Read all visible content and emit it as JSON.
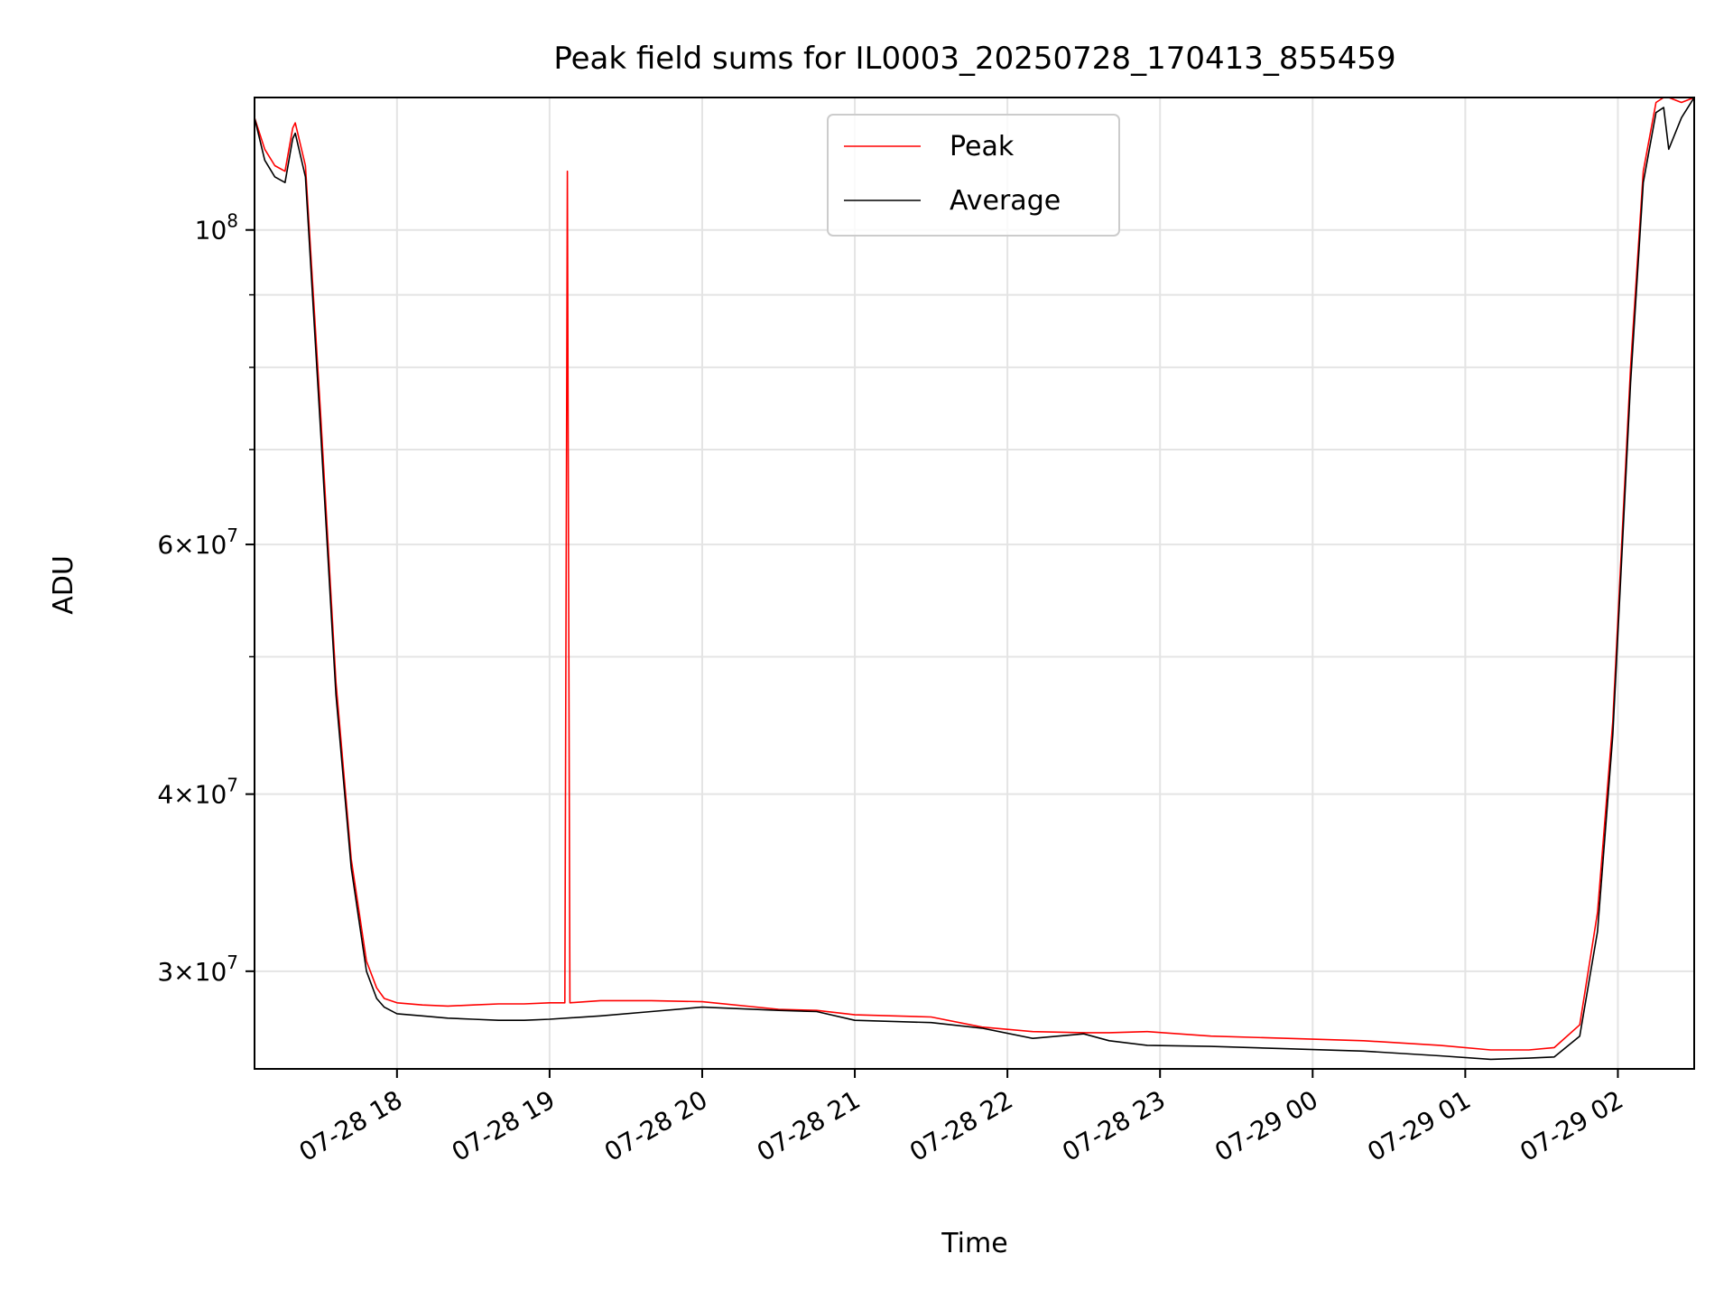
{
  "chart_data": {
    "type": "line",
    "title": "Peak field sums for IL0003_20250728_170413_855459",
    "xlabel": "Time",
    "ylabel": "ADU",
    "y_scale": "log",
    "ylim": [
      25600000,
      124000000
    ],
    "xlim": [
      "2025-07-28 17:04",
      "2025-07-29 02:30"
    ],
    "grid": true,
    "legend_position": "top-center",
    "x_ticks": [
      {
        "label": "07-28 18",
        "t": "2025-07-28 18:00"
      },
      {
        "label": "07-28 19",
        "t": "2025-07-28 19:00"
      },
      {
        "label": "07-28 20",
        "t": "2025-07-28 20:00"
      },
      {
        "label": "07-28 21",
        "t": "2025-07-28 21:00"
      },
      {
        "label": "07-28 22",
        "t": "2025-07-28 22:00"
      },
      {
        "label": "07-28 23",
        "t": "2025-07-28 23:00"
      },
      {
        "label": "07-29 00",
        "t": "2025-07-29 00:00"
      },
      {
        "label": "07-29 01",
        "t": "2025-07-29 01:00"
      },
      {
        "label": "07-29 02",
        "t": "2025-07-29 02:00"
      }
    ],
    "y_major_ticks": [
      {
        "mantissa": "",
        "exponent": "8",
        "value": 100000000
      },
      {
        "mantissa": "6",
        "exponent": "7",
        "value": 60000000
      },
      {
        "mantissa": "4",
        "exponent": "7",
        "value": 40000000
      },
      {
        "mantissa": "3",
        "exponent": "7",
        "value": 30000000
      }
    ],
    "y_minor_ticks": [
      90000000,
      80000000,
      70000000,
      50000000
    ],
    "series": [
      {
        "name": "Peak",
        "color": "#ff0000",
        "x": [
          "2025-07-28 17:04",
          "2025-07-28 17:08",
          "2025-07-28 17:12",
          "2025-07-28 17:16",
          "2025-07-28 17:19",
          "2025-07-28 17:20",
          "2025-07-28 17:24",
          "2025-07-28 17:30",
          "2025-07-28 17:36",
          "2025-07-28 17:42",
          "2025-07-28 17:48",
          "2025-07-28 17:52",
          "2025-07-28 17:55",
          "2025-07-28 18:00",
          "2025-07-28 18:10",
          "2025-07-28 18:20",
          "2025-07-28 18:30",
          "2025-07-28 18:40",
          "2025-07-28 18:50",
          "2025-07-28 19:00",
          "2025-07-28 19:06",
          "2025-07-28 19:07",
          "2025-07-28 19:08",
          "2025-07-28 19:20",
          "2025-07-28 19:40",
          "2025-07-28 20:00",
          "2025-07-28 20:30",
          "2025-07-28 20:45",
          "2025-07-28 21:00",
          "2025-07-28 21:30",
          "2025-07-28 21:50",
          "2025-07-28 22:10",
          "2025-07-28 22:30",
          "2025-07-28 22:40",
          "2025-07-28 22:55",
          "2025-07-28 23:20",
          "2025-07-28 23:50",
          "2025-07-29 00:20",
          "2025-07-29 00:50",
          "2025-07-29 01:10",
          "2025-07-29 01:25",
          "2025-07-29 01:35",
          "2025-07-29 01:45",
          "2025-07-29 01:52",
          "2025-07-29 01:58",
          "2025-07-29 02:05",
          "2025-07-29 02:10",
          "2025-07-29 02:15",
          "2025-07-29 02:18",
          "2025-07-29 02:20",
          "2025-07-29 02:25",
          "2025-07-29 02:30"
        ],
        "values": [
          120000000,
          114000000,
          111000000,
          110000000,
          118000000,
          119000000,
          111000000,
          74000000,
          48000000,
          36000000,
          30500000,
          29200000,
          28700000,
          28500000,
          28400000,
          28350000,
          28400000,
          28450000,
          28450000,
          28500000,
          28500000,
          110000000,
          28500000,
          28600000,
          28600000,
          28550000,
          28200000,
          28150000,
          27950000,
          27850000,
          27400000,
          27200000,
          27150000,
          27150000,
          27200000,
          27000000,
          26900000,
          26800000,
          26600000,
          26400000,
          26400000,
          26500000,
          27500000,
          33000000,
          45000000,
          80000000,
          110000000,
          123000000,
          124000000,
          124000000,
          123000000,
          124000000
        ]
      },
      {
        "name": "Average",
        "color": "#000000",
        "x": [
          "2025-07-28 17:04",
          "2025-07-28 17:08",
          "2025-07-28 17:12",
          "2025-07-28 17:16",
          "2025-07-28 17:19",
          "2025-07-28 17:20",
          "2025-07-28 17:24",
          "2025-07-28 17:30",
          "2025-07-28 17:36",
          "2025-07-28 17:42",
          "2025-07-28 17:48",
          "2025-07-28 17:52",
          "2025-07-28 17:55",
          "2025-07-28 18:00",
          "2025-07-28 18:10",
          "2025-07-28 18:20",
          "2025-07-28 18:30",
          "2025-07-28 18:40",
          "2025-07-28 18:50",
          "2025-07-28 19:00",
          "2025-07-28 19:20",
          "2025-07-28 19:40",
          "2025-07-28 20:00",
          "2025-07-28 20:30",
          "2025-07-28 20:45",
          "2025-07-28 21:00",
          "2025-07-28 21:30",
          "2025-07-28 21:50",
          "2025-07-28 22:10",
          "2025-07-28 22:30",
          "2025-07-28 22:40",
          "2025-07-28 22:55",
          "2025-07-28 23:20",
          "2025-07-28 23:50",
          "2025-07-29 00:20",
          "2025-07-29 00:50",
          "2025-07-29 01:10",
          "2025-07-29 01:25",
          "2025-07-29 01:35",
          "2025-07-29 01:45",
          "2025-07-29 01:52",
          "2025-07-29 01:58",
          "2025-07-29 02:05",
          "2025-07-29 02:10",
          "2025-07-29 02:15",
          "2025-07-29 02:18",
          "2025-07-29 02:20",
          "2025-07-29 02:25",
          "2025-07-29 02:30"
        ],
        "values": [
          120000000,
          112000000,
          109000000,
          108000000,
          116000000,
          117000000,
          109000000,
          72000000,
          47000000,
          35500000,
          30000000,
          28700000,
          28300000,
          28000000,
          27900000,
          27800000,
          27750000,
          27700000,
          27700000,
          27750000,
          27900000,
          28100000,
          28300000,
          28150000,
          28100000,
          27700000,
          27600000,
          27350000,
          26900000,
          27100000,
          26800000,
          26600000,
          26550000,
          26450000,
          26350000,
          26150000,
          26000000,
          26050000,
          26100000,
          27000000,
          32000000,
          44000000,
          78000000,
          108000000,
          121000000,
          122000000,
          114000000,
          120000000,
          124000000
        ]
      }
    ]
  }
}
